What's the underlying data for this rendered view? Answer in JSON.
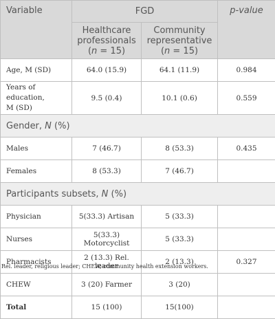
{
  "header": {
    "variable": "Variable",
    "fgd": "FGD",
    "pvalue": "p-value",
    "col1_line1": "Healthcare",
    "col1_line2": "professionals",
    "col1_n_prefix": "(",
    "col1_n_var": "n",
    "col1_n_rest": " = 15)",
    "col2_line1": "Community",
    "col2_line2": "representative",
    "col2_n_prefix": "(",
    "col2_n_var": "n",
    "col2_n_rest": " = 15)"
  },
  "rows": [
    {
      "label": "Age, M (SD)",
      "hp": "64.0 (15.9)",
      "cr": "64.1 (11.9)",
      "p": "0.984"
    },
    {
      "label_line1": "Years of education,",
      "label_line2": "M (SD)",
      "hp": "9.5 (0.4)",
      "cr": "10.1 (0.6)",
      "p": "0.559"
    }
  ],
  "gender": {
    "title_prefix": "Gender, ",
    "title_var": "N",
    "title_suffix": " (%)",
    "rows": [
      {
        "label": "Males",
        "hp": "7 (46.7)",
        "cr": "8 (53.3)",
        "p": "0.435"
      },
      {
        "label": "Females",
        "hp": "8 (53.3)",
        "cr": "7 (46.7)",
        "p": ""
      }
    ]
  },
  "subsets": {
    "title_prefix": "Participants subsets, ",
    "title_var": "N",
    "title_suffix": " (%)",
    "rows": [
      {
        "label": "Physician",
        "hp": "5(33.3) Artisan",
        "cr": "5 (33.3)",
        "p": ""
      },
      {
        "label": "Nurses",
        "hp": "5(33.3) Motorcyclist",
        "cr": "5 (33.3)",
        "p": ""
      },
      {
        "label": "Pharmacists",
        "hp": "2 (13.3) Rel. leader",
        "cr": "2 (13.3)",
        "p": "0.327"
      },
      {
        "label": "CHEW",
        "hp": "3 (20) Farmer",
        "cr": "3 (20)",
        "p": ""
      },
      {
        "label": "Total",
        "hp": "15 (100)",
        "cr": "15(100)",
        "p": ""
      }
    ]
  },
  "footnote": "Rel. leader, religious leader; CHEW, community health extension workers."
}
